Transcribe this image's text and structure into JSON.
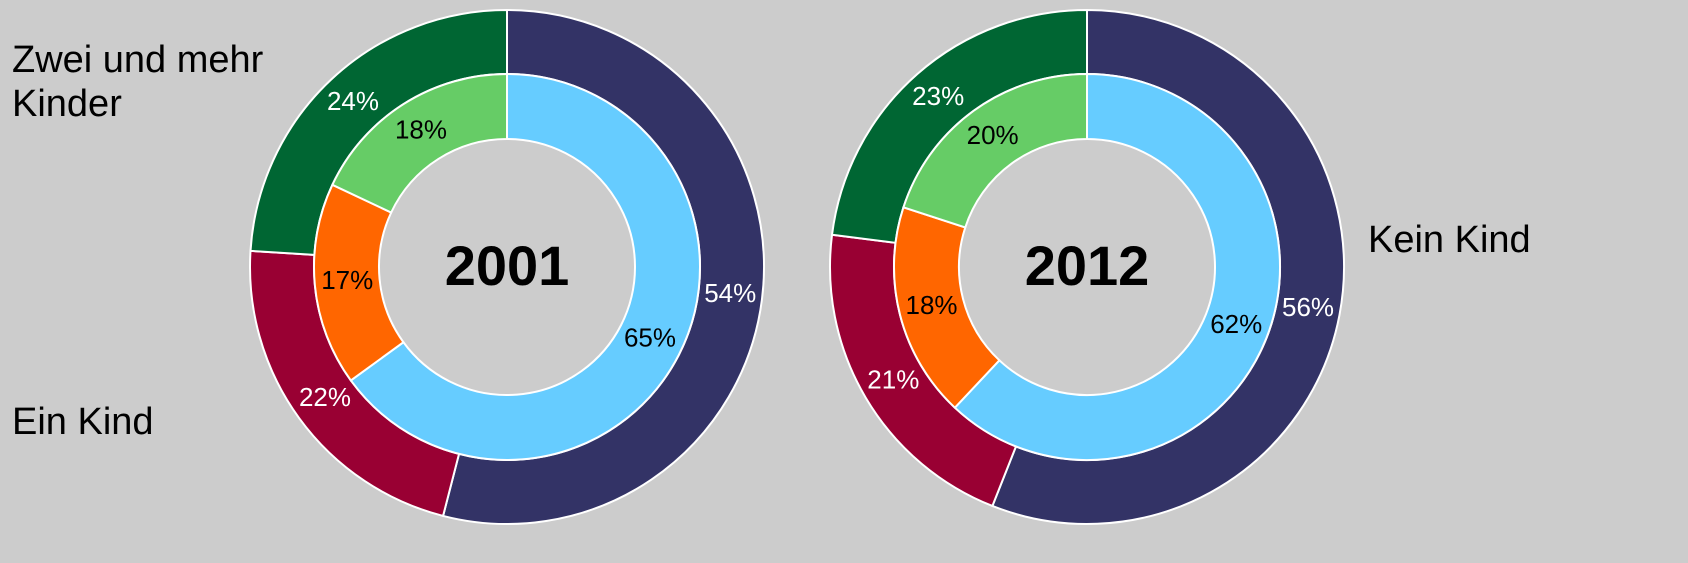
{
  "chart_data": {
    "type": "donut",
    "categories": [
      "Kein Kind",
      "Ein Kind",
      "Zwei und mehr Kinder"
    ],
    "charts": [
      {
        "title": "2001",
        "series": [
          {
            "colors": [
              "#333366",
              "#990033",
              "#006633"
            ],
            "values": [
              54,
              22,
              24
            ],
            "value_labels": [
              "54%",
              "22%",
              "24%"
            ]
          },
          {
            "colors": [
              "#66ccff",
              "#ff6600",
              "#66cc66"
            ],
            "values": [
              65,
              17,
              18
            ],
            "value_labels": [
              "65%",
              "17%",
              "18%"
            ]
          }
        ]
      },
      {
        "title": "2012",
        "series": [
          {
            "colors": [
              "#333366",
              "#990033",
              "#006633"
            ],
            "values": [
              56,
              21,
              23
            ],
            "value_labels": [
              "56%",
              "21%",
              "23%"
            ]
          },
          {
            "colors": [
              "#66ccff",
              "#ff6600",
              "#66cc66"
            ],
            "values": [
              62,
              18,
              20
            ],
            "value_labels": [
              "62%",
              "18%",
              "20%"
            ]
          }
        ]
      }
    ]
  }
}
